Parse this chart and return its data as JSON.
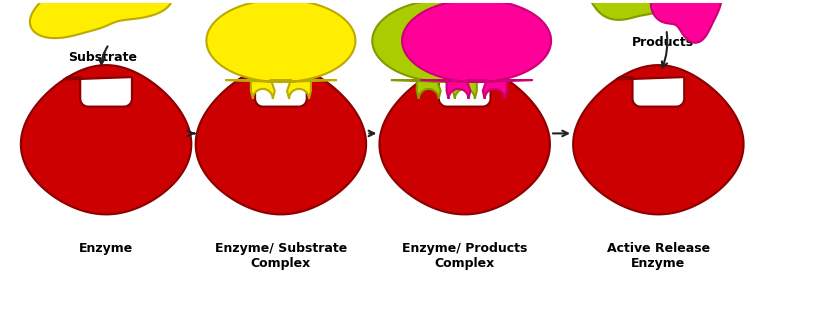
{
  "background_color": "#ffffff",
  "enzyme_color": "#cc0000",
  "enzyme_outline": "#8b0000",
  "substrate_color": "#ffee00",
  "substrate_outline": "#bbaa00",
  "product1_color": "#aacc00",
  "product1_outline": "#889900",
  "product2_color": "#ff0099",
  "product2_outline": "#cc0077",
  "arrow_color": "#222222",
  "labels": [
    "Enzyme",
    "Enzyme/ Substrate\nComplex",
    "Enzyme/ Products\nComplex",
    "Active Release\nEnzyme"
  ],
  "substrate_label": "Substrate",
  "products_label": "Products",
  "label_fontsize": 9,
  "figsize": [
    8.31,
    3.13
  ],
  "dpi": 100
}
